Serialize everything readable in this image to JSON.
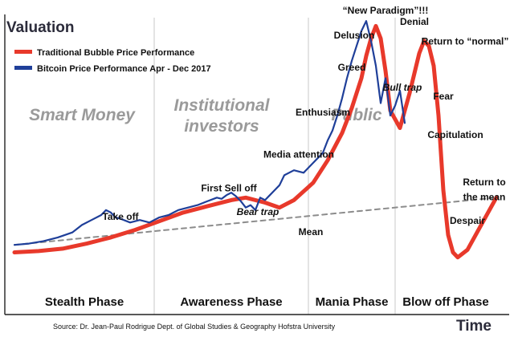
{
  "chart_data": {
    "type": "line",
    "title": "",
    "ylabel": "Valuation",
    "xlabel": "Time",
    "xlim": [
      0,
      100
    ],
    "ylim": [
      0,
      100
    ],
    "legend_position": "top-left",
    "colors": {
      "bubble": "#e8392b",
      "bitcoin": "#1f3f99",
      "mean": "#8c8c8c",
      "divider": "#c8c8c8"
    },
    "series": [
      {
        "name": "Traditional Bubble Price Performance",
        "color": "#e8392b",
        "x": [
          0,
          5,
          10,
          15,
          20,
          25,
          30,
          35,
          40,
          45,
          48,
          52,
          55,
          58,
          62,
          65,
          68,
          70,
          72,
          73,
          74,
          75,
          76,
          77,
          78,
          80,
          82,
          84,
          85,
          86,
          87,
          88,
          89,
          90,
          91,
          92,
          94,
          96,
          100
        ],
        "y": [
          5,
          5.5,
          6.5,
          8.5,
          11,
          14,
          17.5,
          21,
          23.5,
          26,
          27,
          25,
          23,
          26,
          33,
          42,
          53,
          63,
          75,
          84,
          91,
          96,
          91,
          78,
          62,
          55,
          69,
          85,
          90,
          88,
          80,
          60,
          30,
          12,
          5,
          3,
          6,
          13,
          27
        ]
      },
      {
        "name": "Bitcoin Price Performance Apr - Dec 2017",
        "color": "#1f3f99",
        "x": [
          0,
          3,
          6,
          9,
          12,
          14,
          16,
          18,
          19,
          20,
          21,
          22,
          24,
          26,
          28,
          30,
          32,
          33,
          34,
          36,
          38,
          40,
          42,
          43,
          44,
          45,
          46,
          47,
          48,
          49,
          50,
          51,
          52,
          53,
          54,
          55,
          56,
          58,
          60,
          62,
          63,
          64,
          65,
          66,
          67,
          68,
          69,
          70,
          71,
          72,
          73,
          74,
          75,
          76,
          77,
          78,
          79,
          80,
          81
        ],
        "y": [
          8,
          8.5,
          9.5,
          11,
          13,
          16,
          18,
          20,
          22,
          21,
          19,
          18.5,
          17,
          18,
          17,
          19,
          20,
          21,
          22,
          23,
          24,
          25.5,
          27,
          26.5,
          28,
          29,
          27.5,
          25.5,
          23,
          24,
          22,
          27,
          26,
          28,
          30,
          32,
          36,
          38,
          37,
          41,
          43,
          45,
          50,
          54,
          60,
          67,
          75,
          82,
          88,
          94,
          98,
          90,
          80,
          65,
          75,
          60,
          64,
          70,
          57
        ]
      },
      {
        "name": "Mean",
        "color": "#8c8c8c",
        "x": [
          0,
          100
        ],
        "y": [
          8,
          27
        ]
      }
    ],
    "annotations": [
      {
        "text": "Take off",
        "x": 22,
        "y": 18,
        "italic": false
      },
      {
        "text": "First Sell off",
        "x": 44.5,
        "y": 29.5,
        "italic": false
      },
      {
        "text": "Bear trap",
        "x": 50.5,
        "y": 20,
        "italic": true
      },
      {
        "text": "Mean",
        "x": 61.5,
        "y": 12,
        "italic": false
      },
      {
        "text": "Media attention",
        "x": 59,
        "y": 43,
        "italic": false
      },
      {
        "text": "Enthusiasm",
        "x": 64,
        "y": 60,
        "italic": false
      },
      {
        "text": "Greed",
        "x": 70,
        "y": 78,
        "italic": false
      },
      {
        "text": "Delusion",
        "x": 70.5,
        "y": 91,
        "italic": false
      },
      {
        "text": "“New Paradigm”!!!",
        "x": 77,
        "y": 101,
        "italic": false
      },
      {
        "text": "Denial",
        "x": 83,
        "y": 96.5,
        "italic": false
      },
      {
        "text": "Bull trap",
        "x": 80.5,
        "y": 70,
        "italic": true
      },
      {
        "text": "Return to “normal”",
        "x": 93.5,
        "y": 88.5,
        "italic": false
      },
      {
        "text": "Fear",
        "x": 89,
        "y": 66.5,
        "italic": false
      },
      {
        "text": "Capitulation",
        "x": 91.5,
        "y": 51,
        "italic": false
      },
      {
        "text": "Despair",
        "x": 94,
        "y": 16.5,
        "italic": false
      },
      {
        "text": "Return to",
        "x": 97.5,
        "y": 32,
        "italic": false
      },
      {
        "text": "the mean",
        "x": 97.5,
        "y": 26,
        "italic": false
      }
    ],
    "stages": [
      {
        "lines": [
          "Smart Money"
        ],
        "x": 14
      },
      {
        "lines": [
          "Institutional",
          "investors"
        ],
        "x": 43
      },
      {
        "lines": [
          "Public"
        ],
        "x": 71
      }
    ],
    "phases": [
      {
        "label": "Stealth Phase",
        "from": 0,
        "to": 29
      },
      {
        "label": "Awareness Phase",
        "from": 29,
        "to": 61
      },
      {
        "label": "Mania Phase",
        "from": 61,
        "to": 79
      },
      {
        "label": "Blow off Phase",
        "from": 79,
        "to": 100
      }
    ],
    "source": "Source: Dr. Jean-Paul Rodrigue Dept. of Global Studies & Geography Hofstra University"
  }
}
